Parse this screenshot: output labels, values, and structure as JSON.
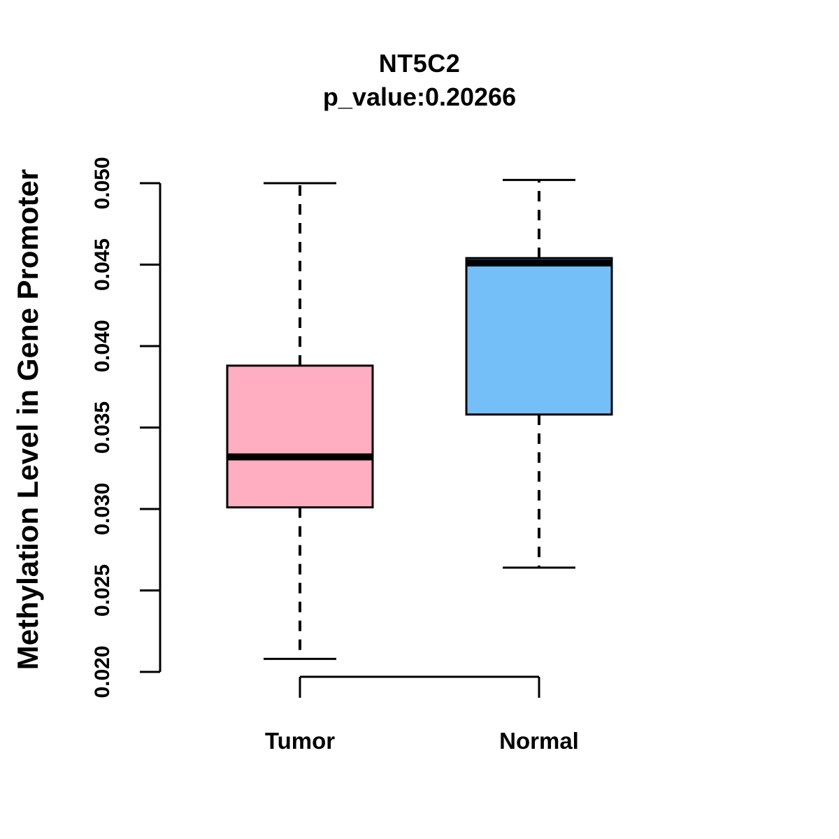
{
  "chart_data": {
    "type": "boxplot",
    "title": "NT5C2",
    "subtitle": "p_value:0.20266",
    "gene": "NT5C2",
    "p_value": "0.20266",
    "ylabel": "Methylation Level in Gene Promoter",
    "xlabel": "",
    "ylim": [
      0.02,
      0.05
    ],
    "y_ticks": [
      0.02,
      0.025,
      0.03,
      0.035,
      0.04,
      0.045,
      0.05
    ],
    "y_tick_labels": [
      "0.020",
      "0.025",
      "0.030",
      "0.035",
      "0.040",
      "0.045",
      "0.050"
    ],
    "grid": false,
    "legend": "none",
    "whisker_style": "dashed",
    "axis_color": "#000000",
    "background_color": "#ffffff",
    "groups": [
      {
        "label": "Tumor",
        "color": "#ffaec1",
        "border_color": "#000000",
        "lower_whisker": 0.0208,
        "q1": 0.0301,
        "median": 0.0332,
        "q3": 0.0388,
        "upper_whisker": 0.05,
        "outliers": []
      },
      {
        "label": "Normal",
        "color": "#74bff8",
        "border_color": "#000000",
        "lower_whisker": 0.0264,
        "q1": 0.0358,
        "median": 0.0451,
        "q3": 0.0454,
        "upper_whisker": 0.0502,
        "outliers": []
      }
    ]
  }
}
